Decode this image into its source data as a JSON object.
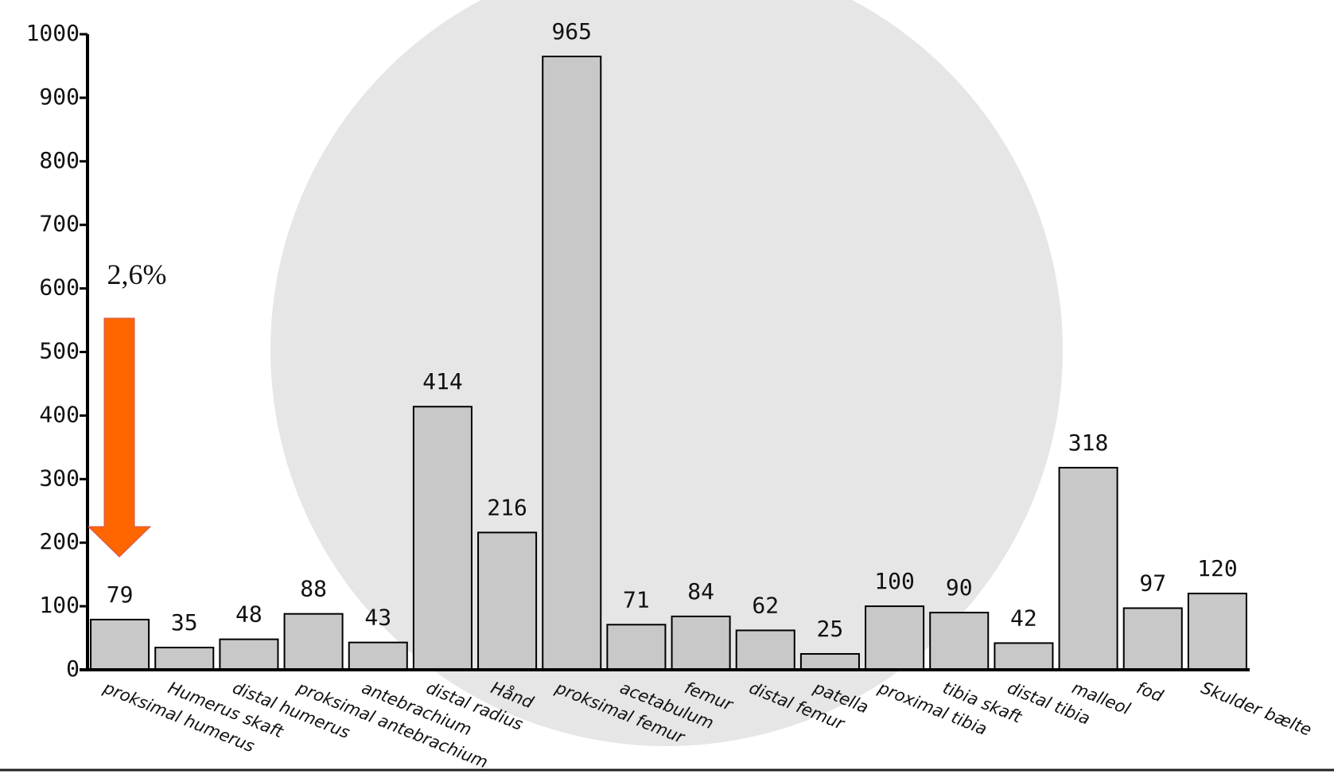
{
  "chart_data": {
    "type": "bar",
    "categories": [
      "proksimal humerus",
      "Humerus skaft",
      "distal humerus",
      "proksimal antebrachium",
      "antebrachium",
      "distal radius",
      "Hånd",
      "proksimal femur",
      "acetabulum",
      "femur",
      "distal femur",
      "patella",
      "proximal tibia",
      "tibia skaft",
      "distal tibia",
      "malleol",
      "fod",
      "Skulder bælte"
    ],
    "values": [
      79,
      35,
      48,
      88,
      43,
      414,
      216,
      965,
      71,
      84,
      62,
      25,
      100,
      90,
      42,
      318,
      97,
      120
    ],
    "color": "#c8c8c8",
    "ylim": [
      0,
      1000
    ],
    "yticks": [
      0,
      100,
      200,
      300,
      400,
      500,
      600,
      700,
      800,
      900,
      1000
    ],
    "annotation": "2,6%",
    "annotation_color": "#ff6600"
  }
}
